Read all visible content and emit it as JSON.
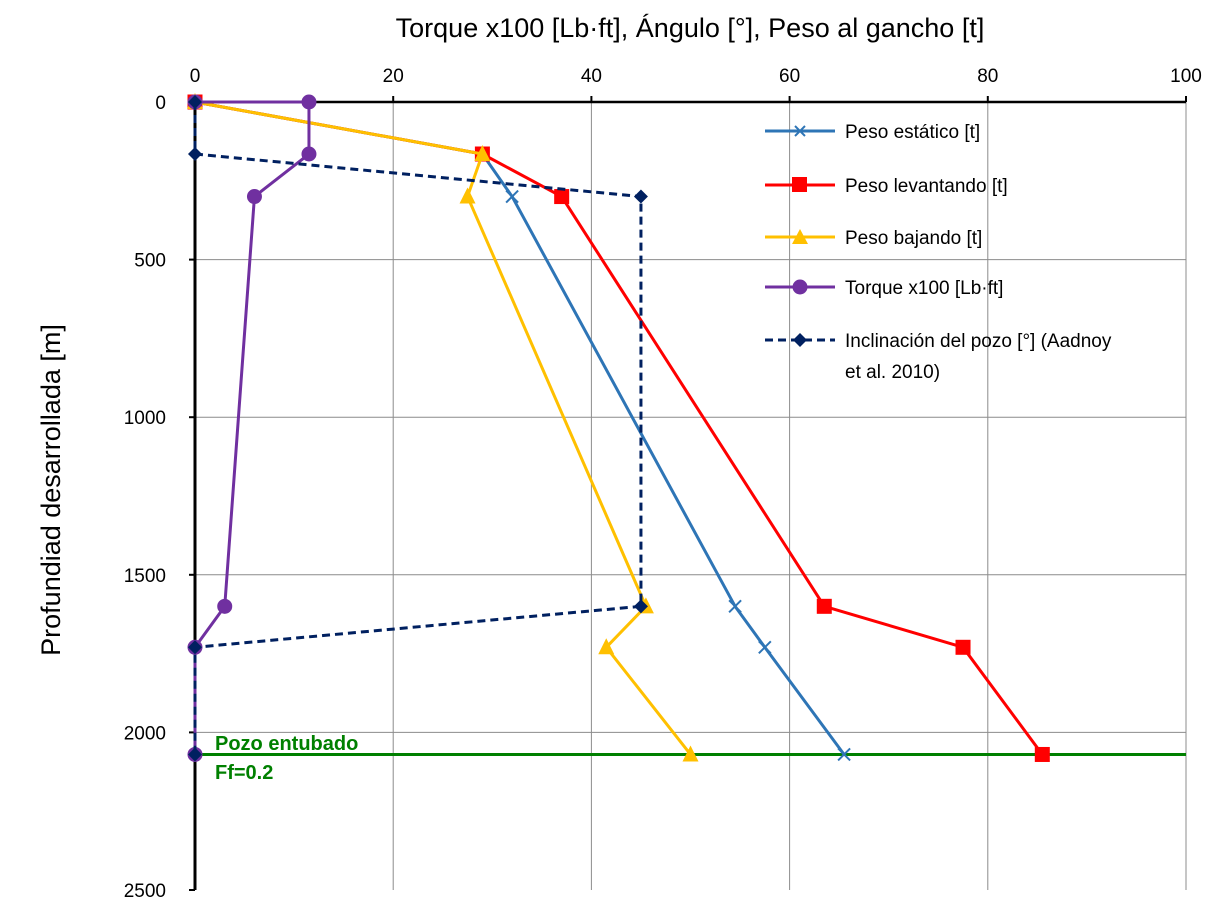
{
  "chart_data": {
    "type": "line",
    "title": "Torque x100 [Lb·ft], Ángulo [°], Peso al gancho [t]",
    "ylabel": "Profundiad desarrollada [m]",
    "xlim": [
      0,
      100
    ],
    "ylim": [
      0,
      2500
    ],
    "y_inverted": true,
    "x_axis_position": "top",
    "x_ticks": [
      "0",
      "20",
      "40",
      "60",
      "80",
      "100"
    ],
    "y_ticks": [
      "0",
      "500",
      "1000",
      "1500",
      "2000",
      "2500"
    ],
    "grid": true,
    "legend_position": "top-right",
    "series": [
      {
        "name": "Peso estático [t]",
        "color": "#2E75B6",
        "marker": "x",
        "dash": false,
        "points": [
          [
            0,
            0
          ],
          [
            29,
            165
          ],
          [
            32,
            300
          ],
          [
            54.5,
            1600
          ],
          [
            57.5,
            1730
          ],
          [
            65.5,
            2070
          ]
        ]
      },
      {
        "name": "Peso levantando [t]",
        "color": "#FF0000",
        "marker": "square",
        "dash": false,
        "points": [
          [
            0,
            0
          ],
          [
            29,
            165
          ],
          [
            37,
            300
          ],
          [
            63.5,
            1600
          ],
          [
            77.5,
            1730
          ],
          [
            85.5,
            2070
          ]
        ]
      },
      {
        "name": "Peso bajando [t]",
        "color": "#FFC000",
        "marker": "triangle",
        "dash": false,
        "points": [
          [
            0,
            0
          ],
          [
            29,
            165
          ],
          [
            27.5,
            300
          ],
          [
            45.5,
            1600
          ],
          [
            41.5,
            1730
          ],
          [
            50,
            2070
          ]
        ]
      },
      {
        "name": "Torque x100 [Lb·ft]",
        "color": "#7030A0",
        "marker": "circle",
        "dash": false,
        "points": [
          [
            0,
            0
          ],
          [
            11.5,
            0
          ],
          [
            11.5,
            165
          ],
          [
            6,
            300
          ],
          [
            3,
            1600
          ],
          [
            0,
            1730
          ],
          [
            0,
            2070
          ]
        ]
      },
      {
        "name": "Inclinación del pozo [°] (Aadnoy et al.  2010)",
        "color": "#002060",
        "marker": "diamond",
        "dash": true,
        "points": [
          [
            0,
            0
          ],
          [
            0,
            165
          ],
          [
            45,
            300
          ],
          [
            45,
            1600
          ],
          [
            0,
            1730
          ],
          [
            0,
            2070
          ]
        ]
      }
    ],
    "reference_line": {
      "y": 2070,
      "color": "#008000",
      "labels": [
        "Pozo entubado",
        "Ff=0.2"
      ]
    }
  },
  "colors": {
    "grid": "#8c8c8c",
    "axis": "#000000",
    "reference": "#008000"
  }
}
